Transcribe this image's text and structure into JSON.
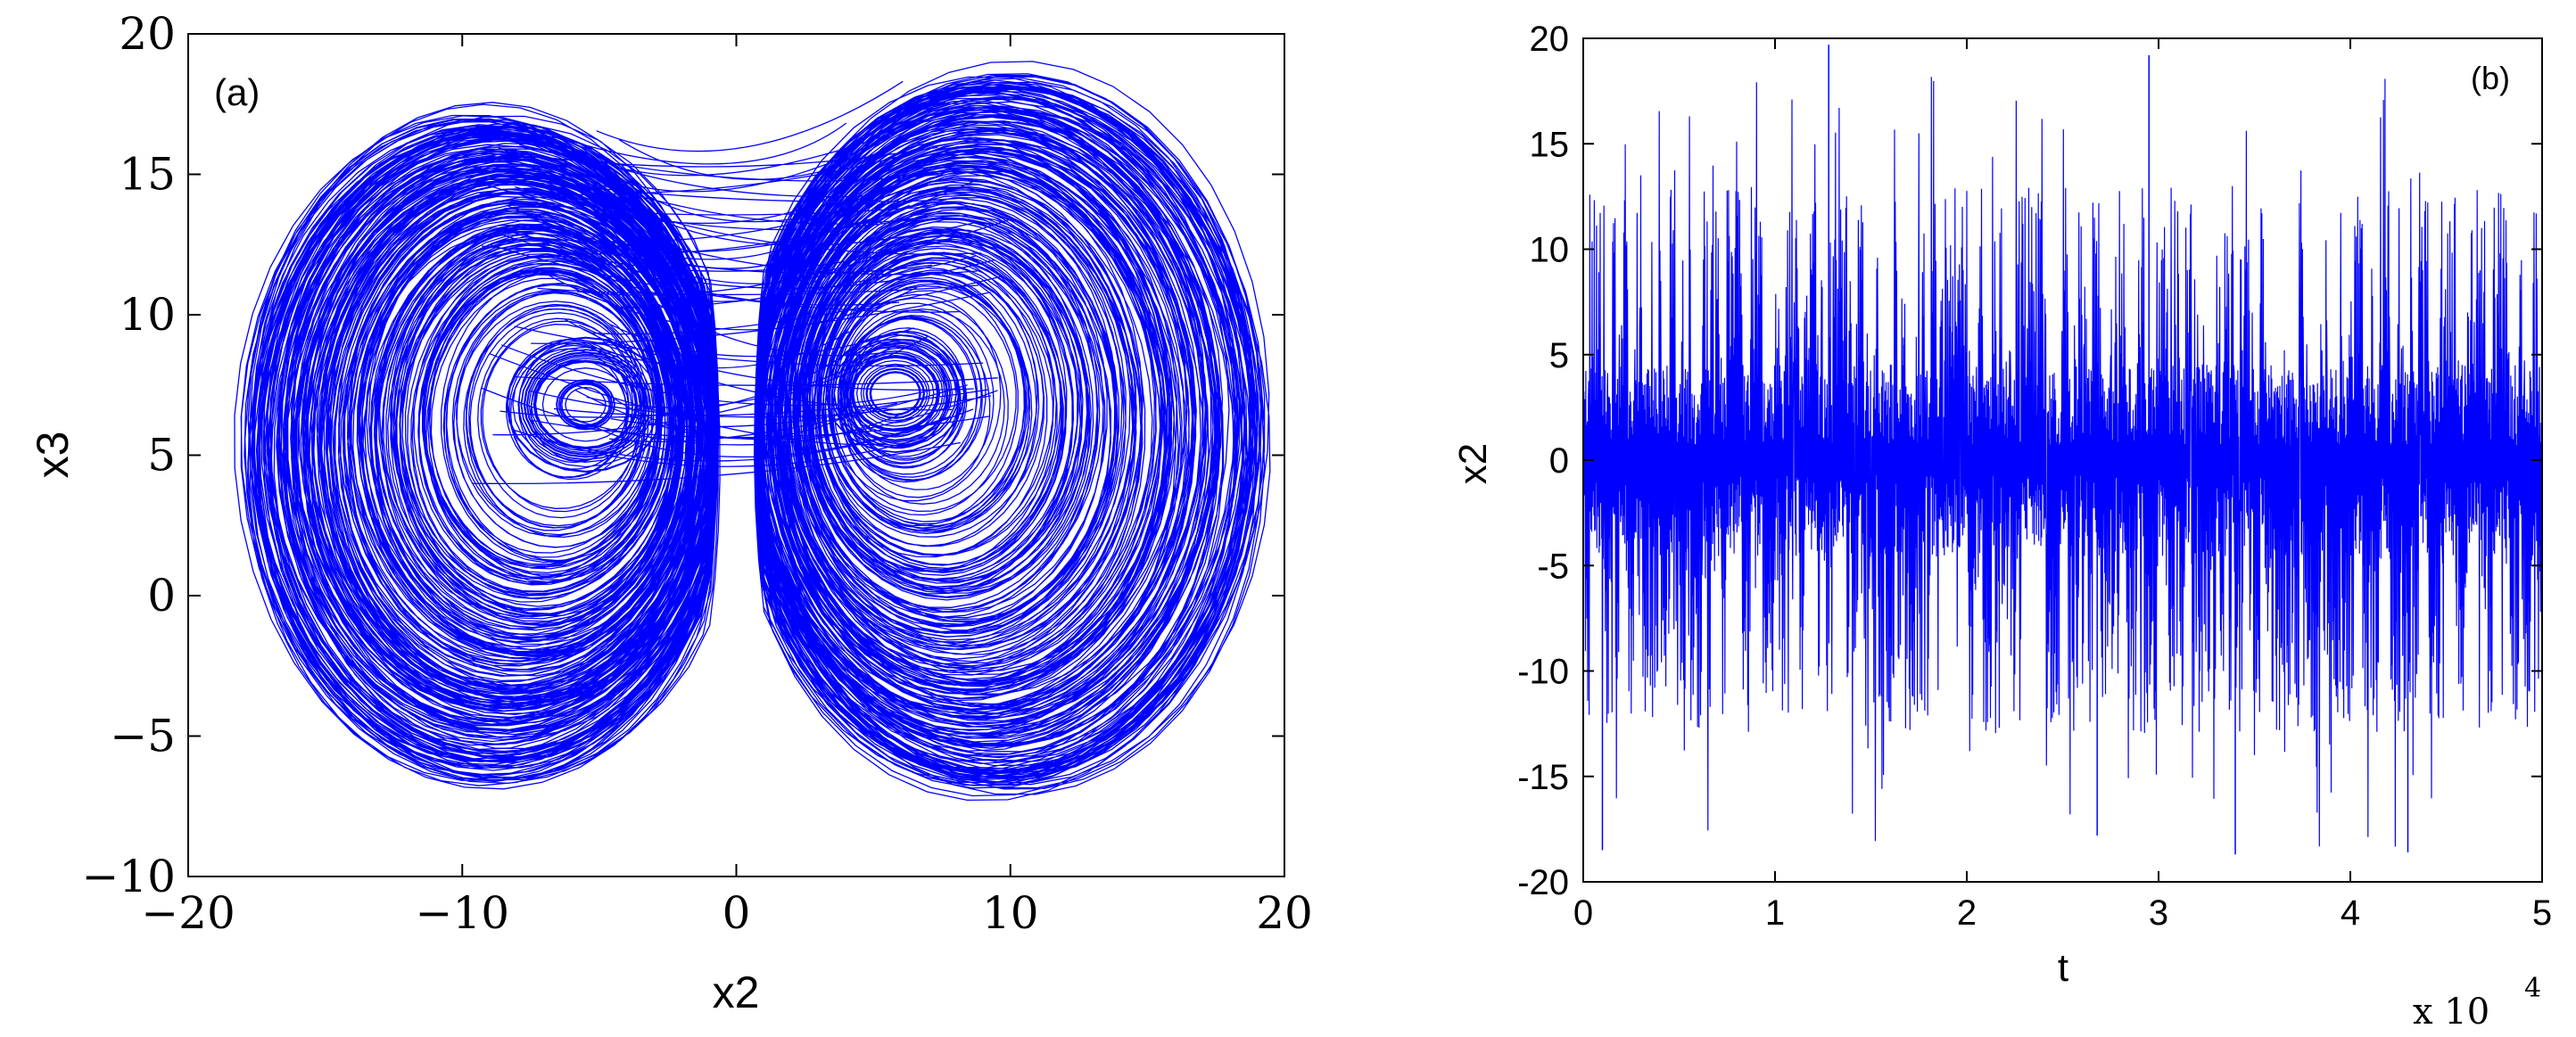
{
  "chart_data": [
    {
      "type": "line",
      "panel_label": "(a)",
      "xlabel": "x2",
      "ylabel": "x3",
      "xlim": [
        -20,
        20
      ],
      "ylim": [
        -10,
        20
      ],
      "xticks": [
        -20,
        -10,
        0,
        10,
        20
      ],
      "yticks": [
        -10,
        -5,
        0,
        5,
        10,
        15,
        20
      ],
      "xtick_labels": [
        "−20",
        "−10",
        "0",
        "10",
        "20"
      ],
      "ytick_labels": [
        "−10",
        "−5",
        "0",
        "5",
        "10",
        "15",
        "20"
      ],
      "grid": false,
      "line_color": "#0000ff",
      "series": [
        {
          "description_free": true,
          "lobes": [
            {
              "center": [
                -5.5,
                6.8
              ],
              "outer_x": [
                -18.3,
                0.2
              ],
              "outer_y": [
                -7.0,
                17.5
              ]
            },
            {
              "center": [
                5.8,
                7.2
              ],
              "outer_x": [
                -0.2,
                19.6
              ],
              "outer_y": [
                -7.4,
                18.9
              ]
            }
          ]
        }
      ]
    },
    {
      "type": "line",
      "panel_label": "(b)",
      "xlabel": "t",
      "ylabel": "x2",
      "xlim": [
        0,
        5
      ],
      "ylim": [
        -20,
        20
      ],
      "xticks": [
        0,
        1,
        2,
        3,
        4,
        5
      ],
      "yticks": [
        -20,
        -15,
        -10,
        -5,
        0,
        5,
        10,
        15,
        20
      ],
      "xtick_labels": [
        "0",
        "1",
        "2",
        "3",
        "4",
        "5"
      ],
      "ytick_labels": [
        "-20",
        "-15",
        "-10",
        "-5",
        "0",
        "5",
        "10",
        "15",
        "20"
      ],
      "x_multiplier_base": "x  10",
      "x_multiplier_exp": "4",
      "grid": false,
      "line_color": "#0000ff",
      "y_range_observed": [
        -18.7,
        19.7
      ]
    }
  ]
}
